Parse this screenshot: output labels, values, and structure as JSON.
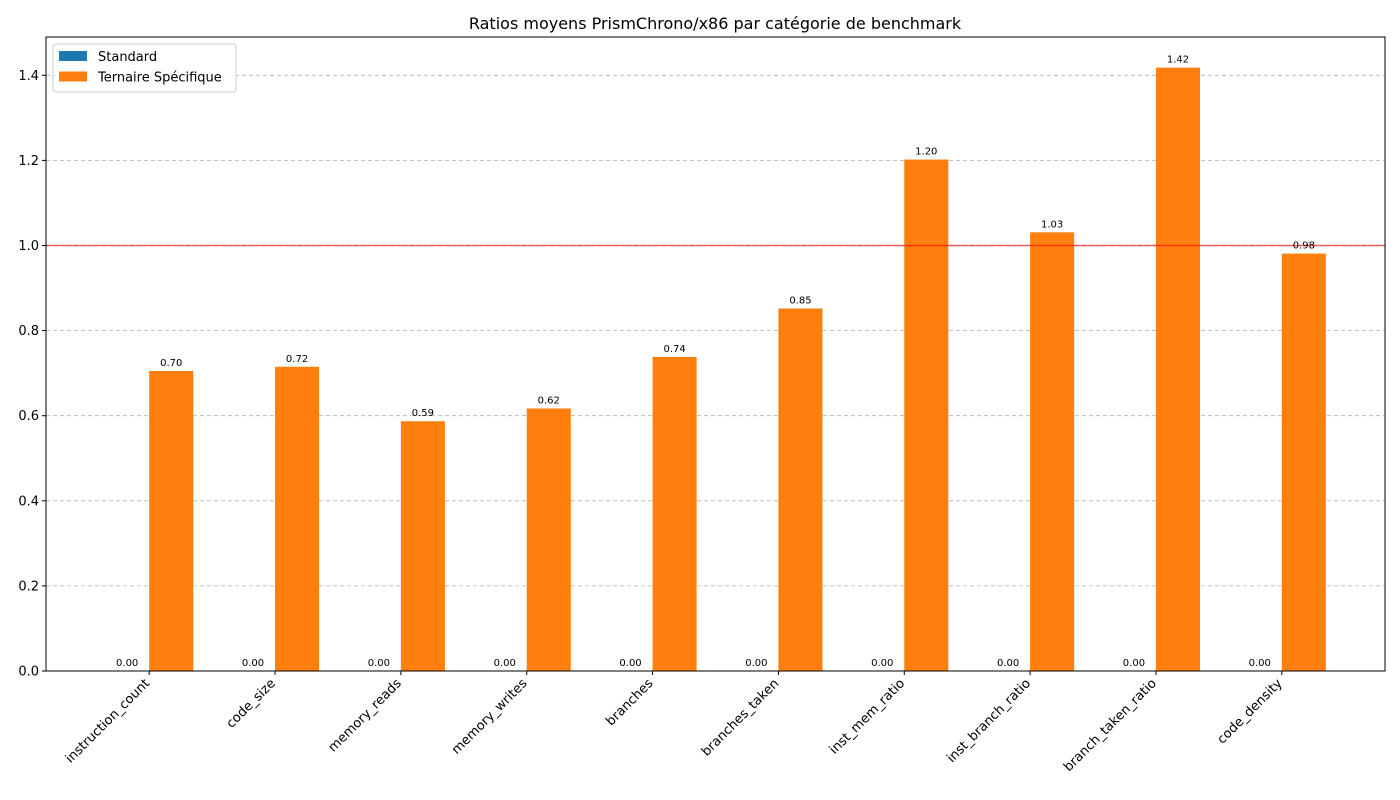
{
  "chart_data": {
    "type": "bar",
    "title": "Ratios moyens PrismChrono/x86 par catégorie de benchmark",
    "xlabel": "",
    "ylabel": "",
    "categories": [
      "instruction_count",
      "code_size",
      "memory_reads",
      "memory_writes",
      "branches",
      "branches_taken",
      "inst_mem_ratio",
      "inst_branch_ratio",
      "branch_taken_ratio",
      "code_density"
    ],
    "series": [
      {
        "name": "Standard",
        "color": "#1f77b4",
        "values": [
          0,
          0,
          0,
          0,
          0,
          0,
          0,
          0,
          0,
          0
        ]
      },
      {
        "name": "Ternaire Spécifique",
        "color": "#ff7f0e",
        "values": [
          0.705,
          0.715,
          0.587,
          0.617,
          0.738,
          0.852,
          1.202,
          1.031,
          1.418,
          0.981
        ]
      }
    ],
    "data_labels": [
      [
        "0.00",
        "0.00",
        "0.00",
        "0.00",
        "0.00",
        "0.00",
        "0.00",
        "0.00",
        "0.00",
        "0.00"
      ],
      [
        "0.70",
        "0.72",
        "0.59",
        "0.62",
        "0.74",
        "0.85",
        "1.20",
        "1.03",
        "1.42",
        "0.98"
      ]
    ],
    "ylim": [
      0,
      1.49
    ],
    "yticks": [
      0.0,
      0.2,
      0.4,
      0.6,
      0.8,
      1.0,
      1.2,
      1.4
    ],
    "ytick_labels": [
      "0.0",
      "0.2",
      "0.4",
      "0.6",
      "0.8",
      "1.0",
      "1.2",
      "1.4"
    ],
    "reference_line": {
      "y": 1.0,
      "color": "#ff0000"
    },
    "grid": "y-dashed",
    "legend_position": "top-left"
  }
}
